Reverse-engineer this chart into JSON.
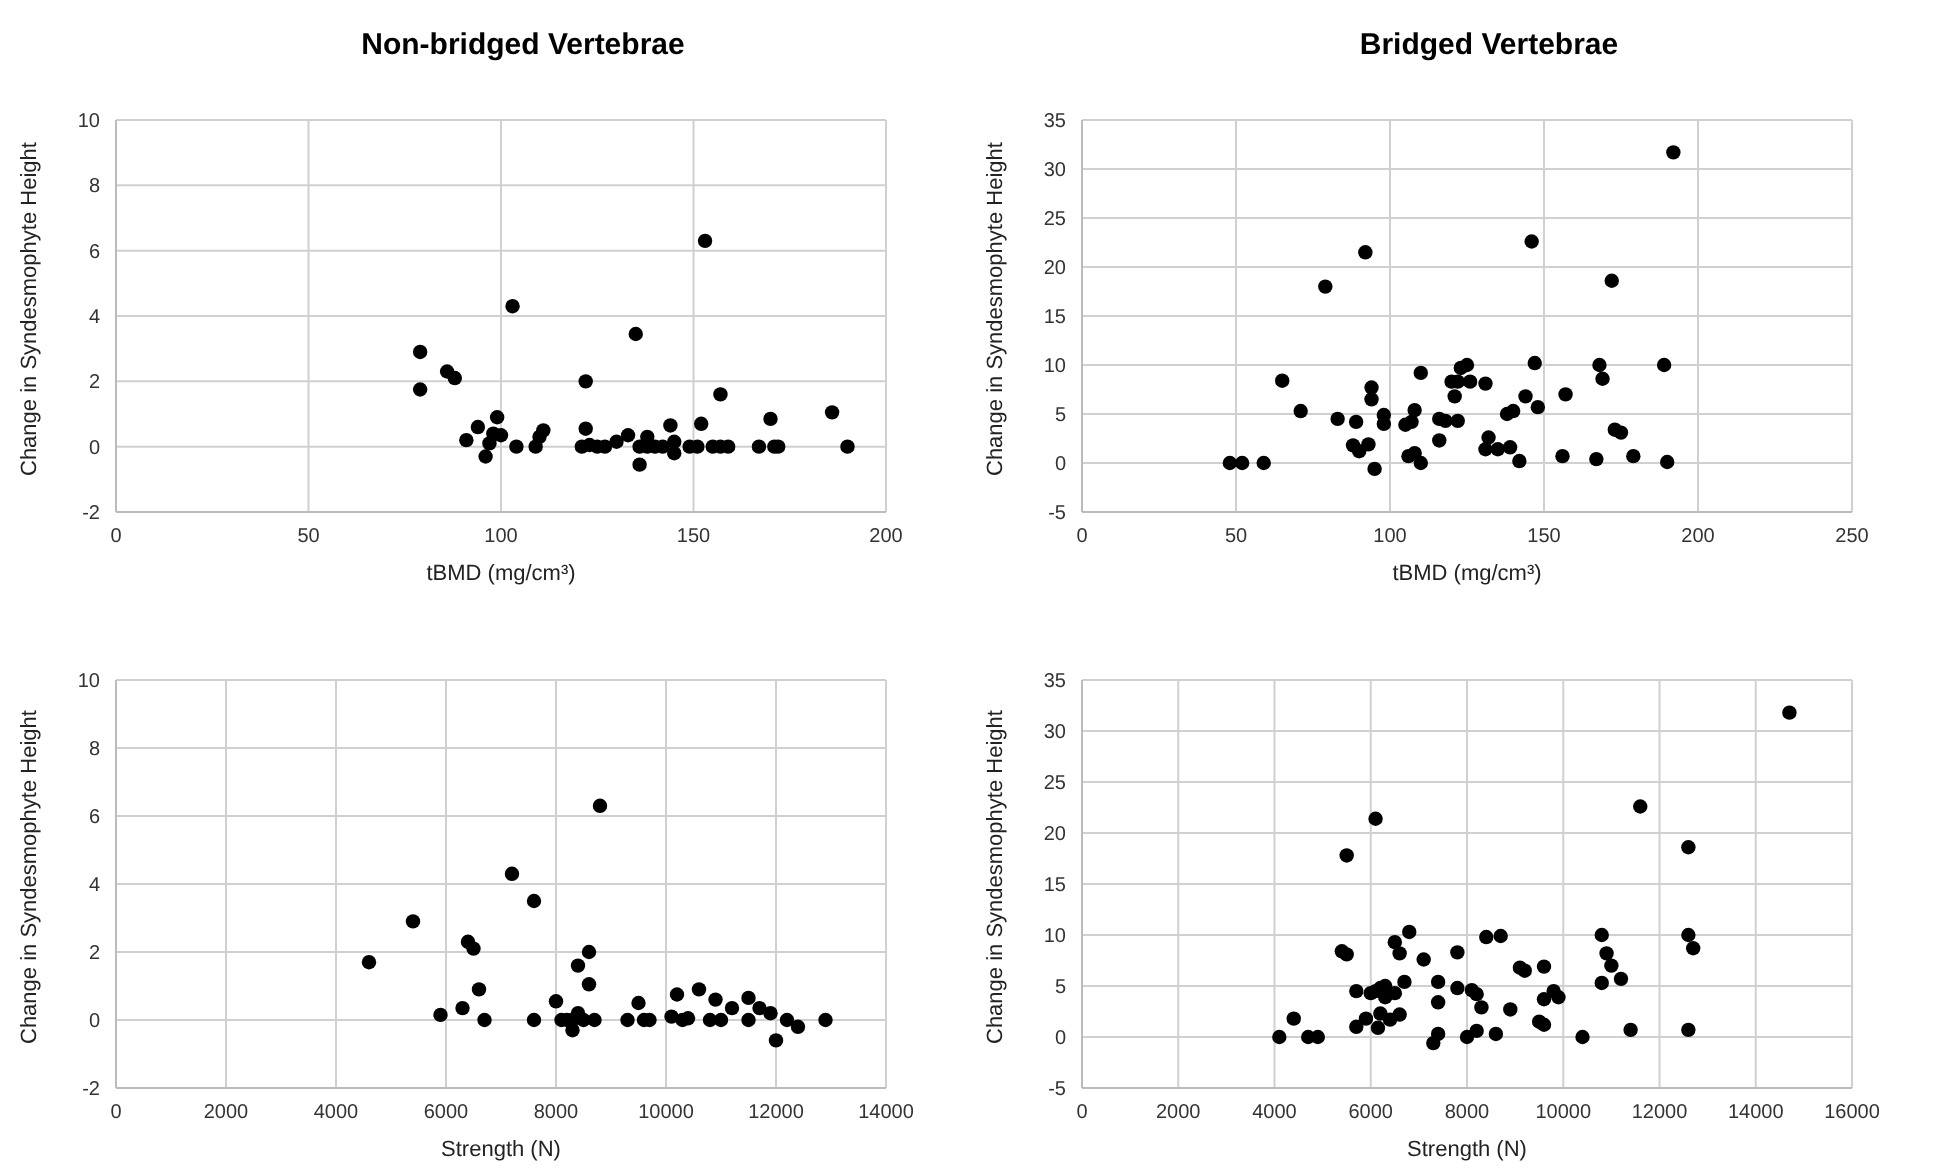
{
  "chart_data": [
    {
      "type": "scatter",
      "title": "Non-bridged Vertebrae",
      "xlabel": "tBMD (mg/cm³)",
      "ylabel": "Change in Syndesmophyte Height",
      "color": "#000000",
      "marker": "circle",
      "grid": true,
      "xlim": [
        0,
        200
      ],
      "xticks": [
        0,
        50,
        100,
        150,
        200
      ],
      "ylim": [
        -2,
        10
      ],
      "yticks": [
        -2,
        0,
        2,
        4,
        6,
        8,
        10
      ],
      "x": [
        79,
        79,
        86,
        88,
        91,
        94,
        96,
        97,
        98,
        99,
        100,
        103,
        104,
        109,
        110,
        111,
        121,
        122,
        122,
        123,
        125,
        127,
        130,
        133,
        135,
        136,
        136,
        138,
        138,
        140,
        142,
        144,
        145,
        145,
        149,
        151,
        152,
        153,
        155,
        157,
        157,
        159,
        167,
        170,
        171,
        172,
        186,
        190
      ],
      "values": [
        2.9,
        1.75,
        2.3,
        2.1,
        0.2,
        0.6,
        -0.3,
        0.1,
        0.4,
        0.9,
        0.35,
        4.3,
        0,
        0,
        0.3,
        0.5,
        0,
        2.0,
        0.55,
        0.05,
        0,
        0,
        0.15,
        0.35,
        3.45,
        -0.55,
        0,
        0,
        0.3,
        0,
        0,
        0.65,
        0.15,
        -0.2,
        0,
        0,
        0.7,
        6.3,
        0,
        0,
        1.6,
        0,
        0,
        0.85,
        0,
        0,
        1.05,
        0
      ]
    },
    {
      "type": "scatter",
      "title": "Bridged Vertebrae",
      "xlabel": "tBMD (mg/cm³)",
      "ylabel": "Change in Syndesmophyte Height",
      "color": "#000000",
      "marker": "circle",
      "grid": true,
      "xlim": [
        0,
        250
      ],
      "xticks": [
        0,
        50,
        100,
        150,
        200,
        250
      ],
      "ylim": [
        -5,
        35
      ],
      "yticks": [
        -5,
        0,
        5,
        10,
        15,
        20,
        25,
        30,
        35
      ],
      "x": [
        48,
        52,
        59,
        65,
        71,
        79,
        83,
        89,
        88,
        90,
        92,
        93,
        94,
        94,
        95,
        98,
        98,
        105,
        106,
        107,
        108,
        108,
        110,
        110,
        116,
        116,
        118,
        120,
        122,
        121,
        122,
        123,
        125,
        126,
        131,
        131,
        132,
        135,
        138,
        139,
        140,
        142,
        144,
        146,
        147,
        148,
        156,
        157,
        167,
        168,
        169,
        172,
        173,
        175,
        179,
        189,
        190,
        192
      ],
      "values": [
        0,
        0,
        0,
        8.4,
        5.3,
        18,
        4.5,
        4.2,
        1.8,
        1.2,
        21.5,
        1.9,
        7.7,
        6.5,
        -0.6,
        4.9,
        4,
        3.9,
        0.7,
        4.2,
        1,
        5.4,
        0,
        9.2,
        2.3,
        4.5,
        4.3,
        8.3,
        4.3,
        6.8,
        8.3,
        9.7,
        10,
        8.3,
        1.4,
        8.1,
        2.6,
        1.4,
        5,
        1.6,
        5.3,
        0.2,
        6.8,
        22.6,
        10.2,
        5.7,
        0.7,
        7,
        0.4,
        10,
        8.6,
        18.6,
        3.4,
        3.1,
        0.7,
        10,
        0.1,
        31.7
      ]
    },
    {
      "type": "scatter",
      "xlabel": "Strength (N)",
      "ylabel": "Change in Syndesmophyte Height",
      "color": "#000000",
      "marker": "circle",
      "grid": true,
      "xlim": [
        0,
        14000
      ],
      "xticks": [
        0,
        2000,
        4000,
        6000,
        8000,
        10000,
        12000,
        14000
      ],
      "ylim": [
        -2,
        10
      ],
      "yticks": [
        -2,
        0,
        2,
        4,
        6,
        8,
        10
      ],
      "x": [
        4600,
        5400,
        5900,
        6300,
        6400,
        6500,
        6600,
        6700,
        7200,
        7600,
        7600,
        8000,
        8100,
        8200,
        8300,
        8300,
        8400,
        8500,
        8400,
        8600,
        8600,
        8700,
        8800,
        9300,
        9500,
        9600,
        9700,
        10100,
        10200,
        10300,
        10400,
        10600,
        10800,
        10900,
        11000,
        11200,
        11500,
        11500,
        11700,
        11900,
        12000,
        12200,
        12400,
        12900
      ],
      "values": [
        1.7,
        2.9,
        0.15,
        0.35,
        2.3,
        2.1,
        0.9,
        0,
        4.3,
        3.5,
        0,
        0.55,
        0,
        0,
        0,
        -0.3,
        0.2,
        0,
        1.6,
        2.0,
        1.05,
        0,
        6.3,
        0,
        0.5,
        0,
        0,
        0.1,
        0.75,
        0,
        0.05,
        0.9,
        0,
        0.6,
        0,
        0.35,
        0.65,
        0,
        0.35,
        0.2,
        -0.6,
        0,
        -0.2,
        0
      ]
    },
    {
      "type": "scatter",
      "xlabel": "Strength (N)",
      "ylabel": "Change in Syndesmophyte Height",
      "color": "#000000",
      "marker": "circle",
      "grid": true,
      "xlim": [
        0,
        16000
      ],
      "xticks": [
        0,
        2000,
        4000,
        6000,
        8000,
        10000,
        12000,
        14000,
        16000
      ],
      "ylim": [
        -5,
        35
      ],
      "yticks": [
        -5,
        0,
        5,
        10,
        15,
        20,
        25,
        30,
        35
      ],
      "x": [
        4100,
        4400,
        4700,
        4900,
        5400,
        5500,
        5500,
        5700,
        5700,
        5900,
        6000,
        6100,
        6100,
        6200,
        6150,
        6200,
        6300,
        6300,
        6400,
        6500,
        6500,
        6600,
        6600,
        6700,
        6800,
        7100,
        7400,
        7300,
        7400,
        7400,
        7800,
        7800,
        8000,
        8100,
        8200,
        8200,
        8300,
        8400,
        8600,
        8700,
        8900,
        9100,
        9200,
        9500,
        9600,
        9600,
        9600,
        9800,
        9900,
        10400,
        10800,
        10800,
        10900,
        11000,
        11200,
        11400,
        11600,
        12600,
        12600,
        12600,
        12700,
        14700
      ],
      "values": [
        0,
        1.8,
        0,
        0,
        8.4,
        8.1,
        17.8,
        1,
        4.5,
        1.8,
        4.3,
        21.4,
        4.5,
        2.3,
        0.9,
        4.8,
        5,
        3.9,
        1.7,
        4.3,
        9.3,
        2.2,
        8.2,
        5.4,
        10.3,
        7.6,
        5.4,
        -0.6,
        0.3,
        3.4,
        8.3,
        4.8,
        0,
        4.6,
        0.6,
        4.2,
        2.9,
        9.8,
        0.3,
        9.9,
        2.7,
        6.8,
        6.5,
        1.5,
        1.2,
        6.9,
        3.7,
        4.5,
        3.9,
        0,
        5.3,
        10,
        8.2,
        7,
        5.7,
        0.7,
        22.6,
        18.6,
        10,
        0.7,
        8.7,
        31.8
      ]
    }
  ]
}
